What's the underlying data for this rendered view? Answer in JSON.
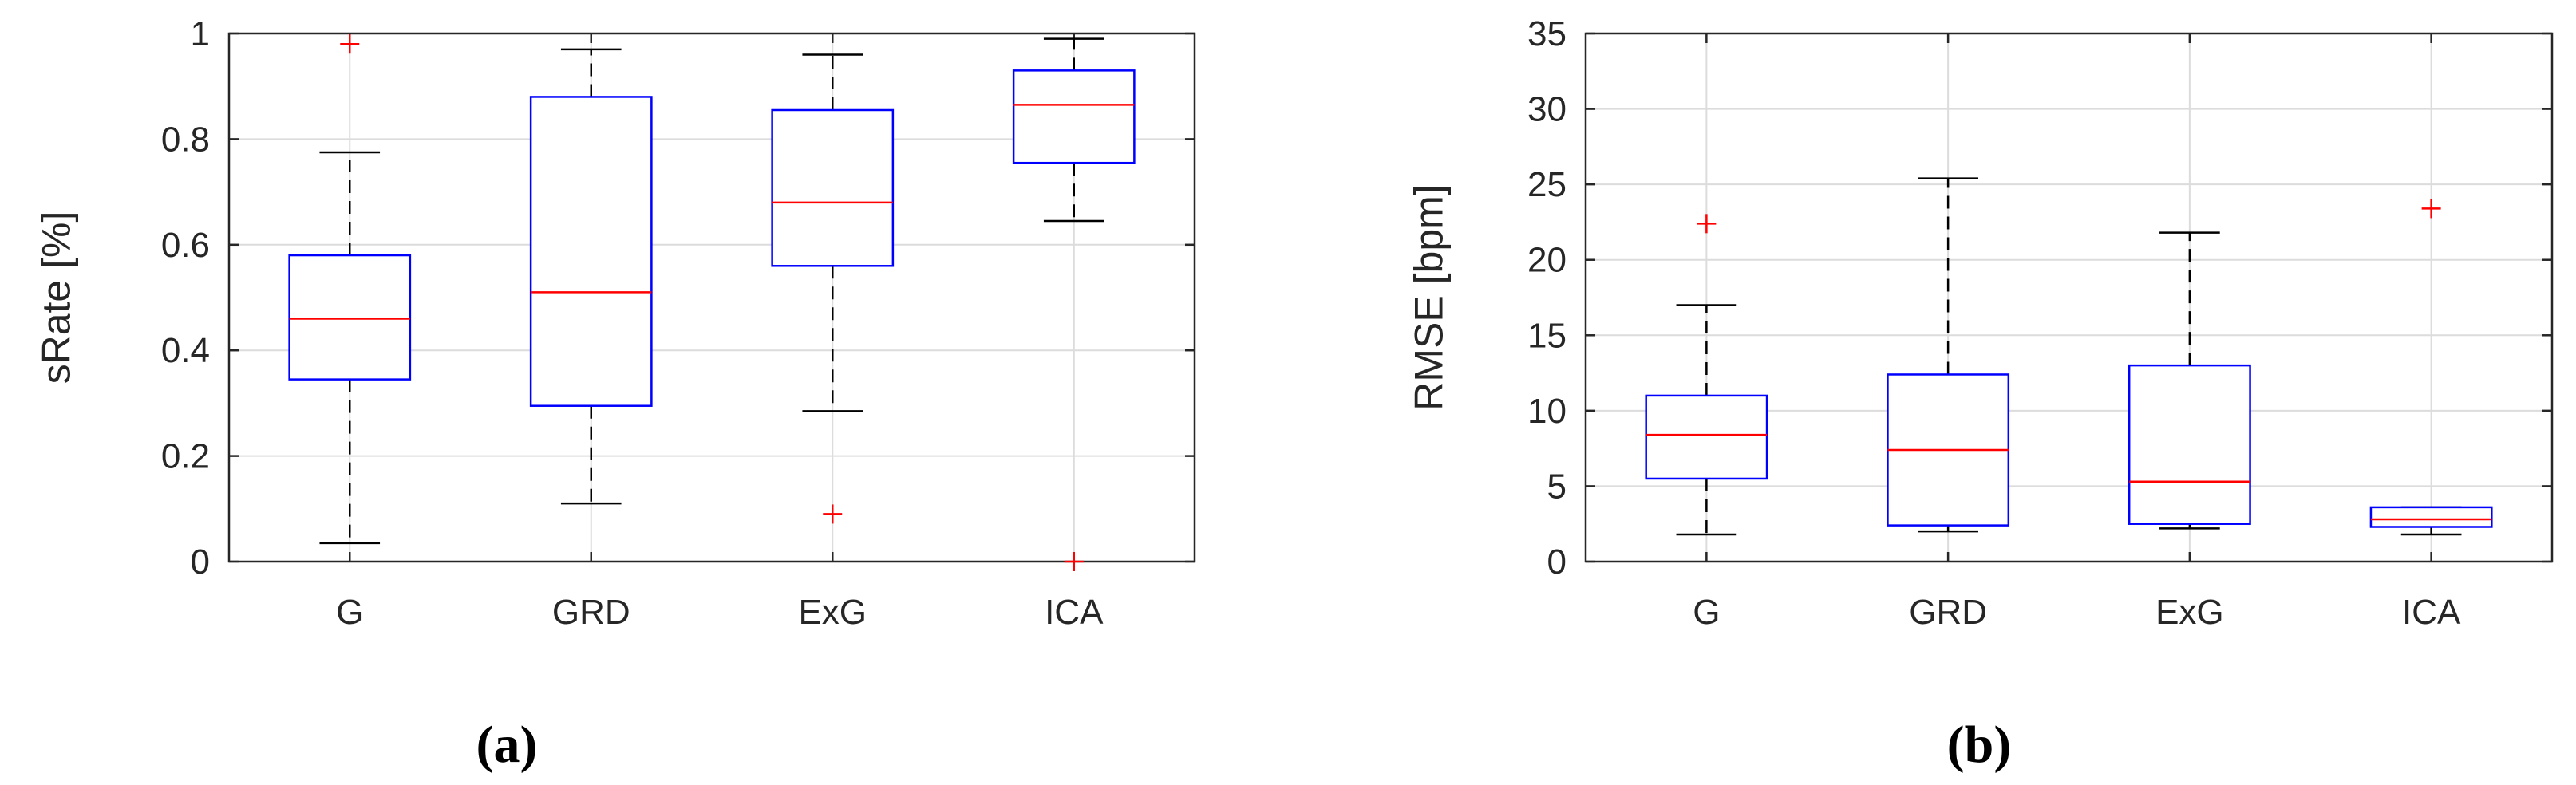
{
  "colors": {
    "box": "#0000ff",
    "median": "#ff0000",
    "whisker": "#000000",
    "outlier": "#ff0000",
    "grid": "#dcdcdc",
    "axes": "#262626"
  },
  "chart_data": [
    {
      "type": "box",
      "panel_label": "(a)",
      "ylabel": "sRate [%]",
      "ylim": [
        0,
        1
      ],
      "yticks": [
        "0",
        "0.2",
        "0.4",
        "0.6",
        "0.8",
        "1"
      ],
      "ytick_values": [
        0,
        0.2,
        0.4,
        0.6,
        0.8,
        1
      ],
      "grid": true,
      "categories": [
        "G",
        "GRD",
        "ExG",
        "ICA"
      ],
      "boxes": [
        {
          "category": "G",
          "whisker_low": 0.035,
          "q1": 0.345,
          "median": 0.46,
          "q3": 0.58,
          "whisker_high": 0.775,
          "outliers": [
            0.98
          ]
        },
        {
          "category": "GRD",
          "whisker_low": 0.11,
          "q1": 0.295,
          "median": 0.51,
          "q3": 0.88,
          "whisker_high": 0.97,
          "outliers": []
        },
        {
          "category": "ExG",
          "whisker_low": 0.285,
          "q1": 0.56,
          "median": 0.68,
          "q3": 0.855,
          "whisker_high": 0.96,
          "outliers": [
            0.09
          ]
        },
        {
          "category": "ICA",
          "whisker_low": 0.645,
          "q1": 0.755,
          "median": 0.865,
          "q3": 0.93,
          "whisker_high": 0.99,
          "outliers": [
            0.0
          ]
        }
      ]
    },
    {
      "type": "box",
      "panel_label": "(b)",
      "ylabel": "RMSE [bpm]",
      "ylim": [
        0,
        35
      ],
      "yticks": [
        "0",
        "5",
        "10",
        "15",
        "20",
        "25",
        "30",
        "35"
      ],
      "ytick_values": [
        0,
        5,
        10,
        15,
        20,
        25,
        30,
        35
      ],
      "grid": true,
      "categories": [
        "G",
        "GRD",
        "ExG",
        "ICA"
      ],
      "boxes": [
        {
          "category": "G",
          "whisker_low": 1.8,
          "q1": 5.5,
          "median": 8.4,
          "q3": 11.0,
          "whisker_high": 17.0,
          "outliers": [
            22.4
          ]
        },
        {
          "category": "GRD",
          "whisker_low": 2.0,
          "q1": 2.4,
          "median": 7.4,
          "q3": 12.4,
          "whisker_high": 25.4,
          "outliers": []
        },
        {
          "category": "ExG",
          "whisker_low": 2.2,
          "q1": 2.5,
          "median": 5.3,
          "q3": 13.0,
          "whisker_high": 21.8,
          "outliers": []
        },
        {
          "category": "ICA",
          "whisker_low": 1.8,
          "q1": 2.3,
          "median": 2.8,
          "q3": 3.6,
          "whisker_high": 3.6,
          "outliers": [
            23.4
          ]
        }
      ]
    }
  ]
}
